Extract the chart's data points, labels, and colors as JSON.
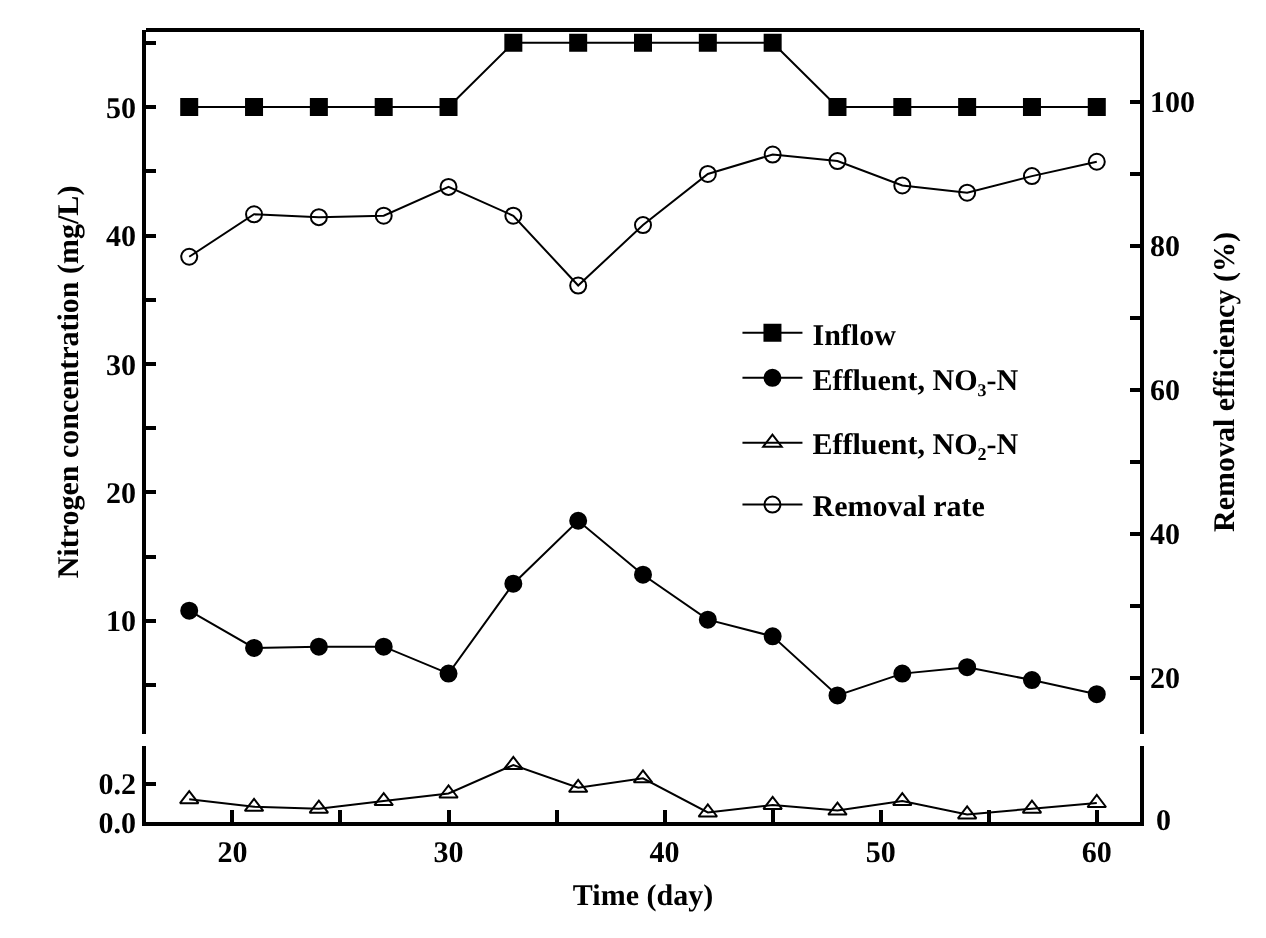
{
  "chart_data": [
    {
      "type": "line",
      "ylabel": "Nitrogen concentration (mg/L)",
      "y2label": "Removal efficiency (%)",
      "tick_labels": "y",
      "x": [
        18,
        21,
        24,
        27,
        30,
        33,
        36,
        39,
        42,
        45,
        48,
        51,
        54,
        57,
        60
      ],
      "xlim": [
        16,
        62
      ],
      "xticks": [
        20,
        {
          "value": 25,
          "label": null
        },
        30,
        {
          "value": 35,
          "label": null
        },
        40,
        {
          "value": 45,
          "label": null
        },
        50,
        {
          "value": 55,
          "label": null
        },
        60
      ],
      "ylim": [
        1.2,
        56
      ],
      "yticks": [
        {
          "value": 5,
          "label": null
        },
        10,
        {
          "value": 15,
          "label": null
        },
        20,
        {
          "value": 25,
          "label": null
        },
        30,
        {
          "value": 35,
          "label": null
        },
        40,
        {
          "value": 45,
          "label": null
        },
        50,
        {
          "value": 55,
          "label": null
        }
      ],
      "y2lim": [
        12.2,
        110
      ],
      "y2ticks": [
        20,
        {
          "value": 30,
          "label": null
        },
        40,
        {
          "value": 50,
          "label": null
        },
        60,
        {
          "value": 70,
          "label": null
        },
        80,
        {
          "value": 90,
          "label": null
        },
        100
      ],
      "legend": "right",
      "series": [
        {
          "name": "Inflow",
          "color": "#000000",
          "marker": "square",
          "values": [
            50,
            50,
            50,
            50,
            50,
            55,
            55,
            55,
            55,
            55,
            50,
            50,
            50,
            50,
            50
          ]
        },
        {
          "name": "Effluent, NO₃-N",
          "color": "#000000",
          "marker": "circle",
          "values": [
            10.8,
            7.9,
            8.0,
            8.0,
            5.9,
            12.9,
            17.8,
            13.6,
            10.1,
            8.8,
            4.2,
            5.9,
            6.4,
            5.4,
            4.3
          ]
        },
        {
          "name": "Removal rate",
          "color": "#000000",
          "marker": "circle-open",
          "axis": "y2",
          "values": [
            78.5,
            84.4,
            84.0,
            84.2,
            88.2,
            84.2,
            74.5,
            82.9,
            90.0,
            92.7,
            91.8,
            88.4,
            87.4,
            89.7,
            91.7
          ]
        }
      ]
    },
    {
      "type": "line",
      "xlabel": "Time (day)",
      "x": [
        18,
        21,
        24,
        27,
        30,
        33,
        36,
        39,
        42,
        45,
        48,
        51,
        54,
        57,
        60
      ],
      "xlim": [
        16,
        62
      ],
      "xticks": [
        20,
        {
          "value": 25,
          "label": null
        },
        30,
        {
          "value": 35,
          "label": null
        },
        40,
        {
          "value": 45,
          "label": null
        },
        50,
        {
          "value": 55,
          "label": null
        },
        60
      ],
      "ylim": [
        0,
        0.4
      ],
      "yticks": [
        {
          "value": 0,
          "label": "0.0"
        },
        {
          "value": 0.2,
          "label": "0.2"
        }
      ],
      "annotations": [
        "0"
      ],
      "legend": "right",
      "series": [
        {
          "name": "Effluent, NO₂-N",
          "color": "#000000",
          "marker": "triangle",
          "values": [
            0.12,
            0.08,
            0.07,
            0.11,
            0.15,
            0.3,
            0.18,
            0.23,
            0.05,
            0.09,
            0.06,
            0.11,
            0.04,
            0.07,
            0.1
          ]
        }
      ]
    }
  ]
}
